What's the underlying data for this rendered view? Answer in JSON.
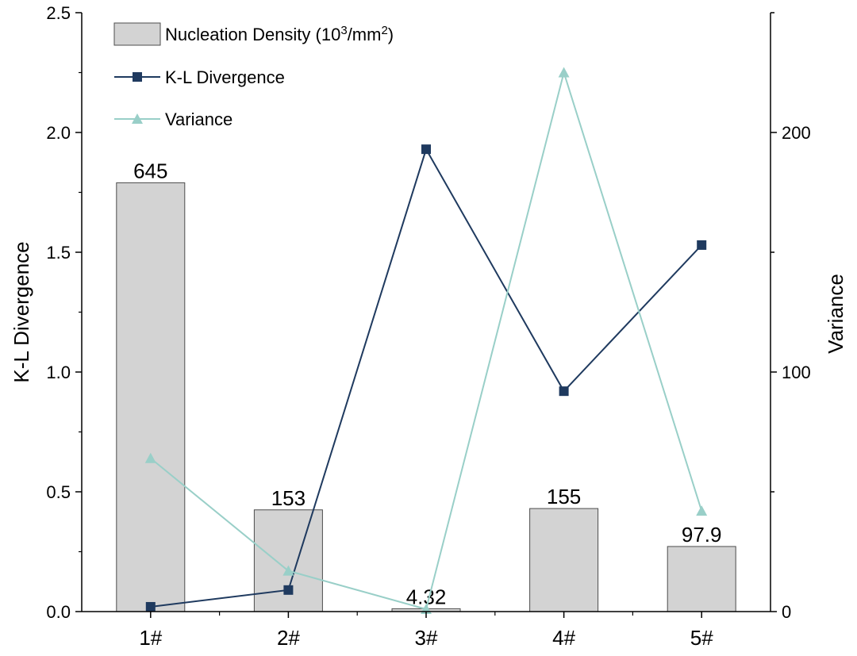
{
  "chart_data": {
    "type": "bar+line",
    "categories": [
      "1#",
      "2#",
      "3#",
      "4#",
      "5#"
    ],
    "bar_series": {
      "name": "Nucleation Density (10³/mm²)",
      "name_parts": [
        "Nucleation Density (10",
        "3",
        "/mm",
        "2",
        ")"
      ],
      "values": [
        645,
        153,
        4.32,
        155,
        97.9
      ],
      "labels": [
        "645",
        "153",
        "4.32",
        "155",
        "97.9"
      ],
      "color": "#d3d3d3",
      "edge_color": "#4d4d4d"
    },
    "line_series": [
      {
        "name": "K-L Divergence",
        "axis": "left",
        "values": [
          0.02,
          0.09,
          1.93,
          0.92,
          1.53
        ],
        "color": "#1f3a5f",
        "marker": "square"
      },
      {
        "name": "Variance",
        "axis": "right",
        "values": [
          64,
          17,
          1,
          225,
          42
        ],
        "color": "#99cfc8",
        "marker": "triangle"
      }
    ],
    "ylabel": "K-L Divergence",
    "y2label": "Variance",
    "ylim": [
      0,
      2.5
    ],
    "y2lim": [
      0,
      250
    ],
    "yticks": [
      "0.0",
      "0.5",
      "1.0",
      "1.5",
      "2.0",
      "2.5"
    ],
    "y2ticks": [
      "0",
      "100",
      "200"
    ],
    "legend_position": "top-left",
    "grid": false
  }
}
